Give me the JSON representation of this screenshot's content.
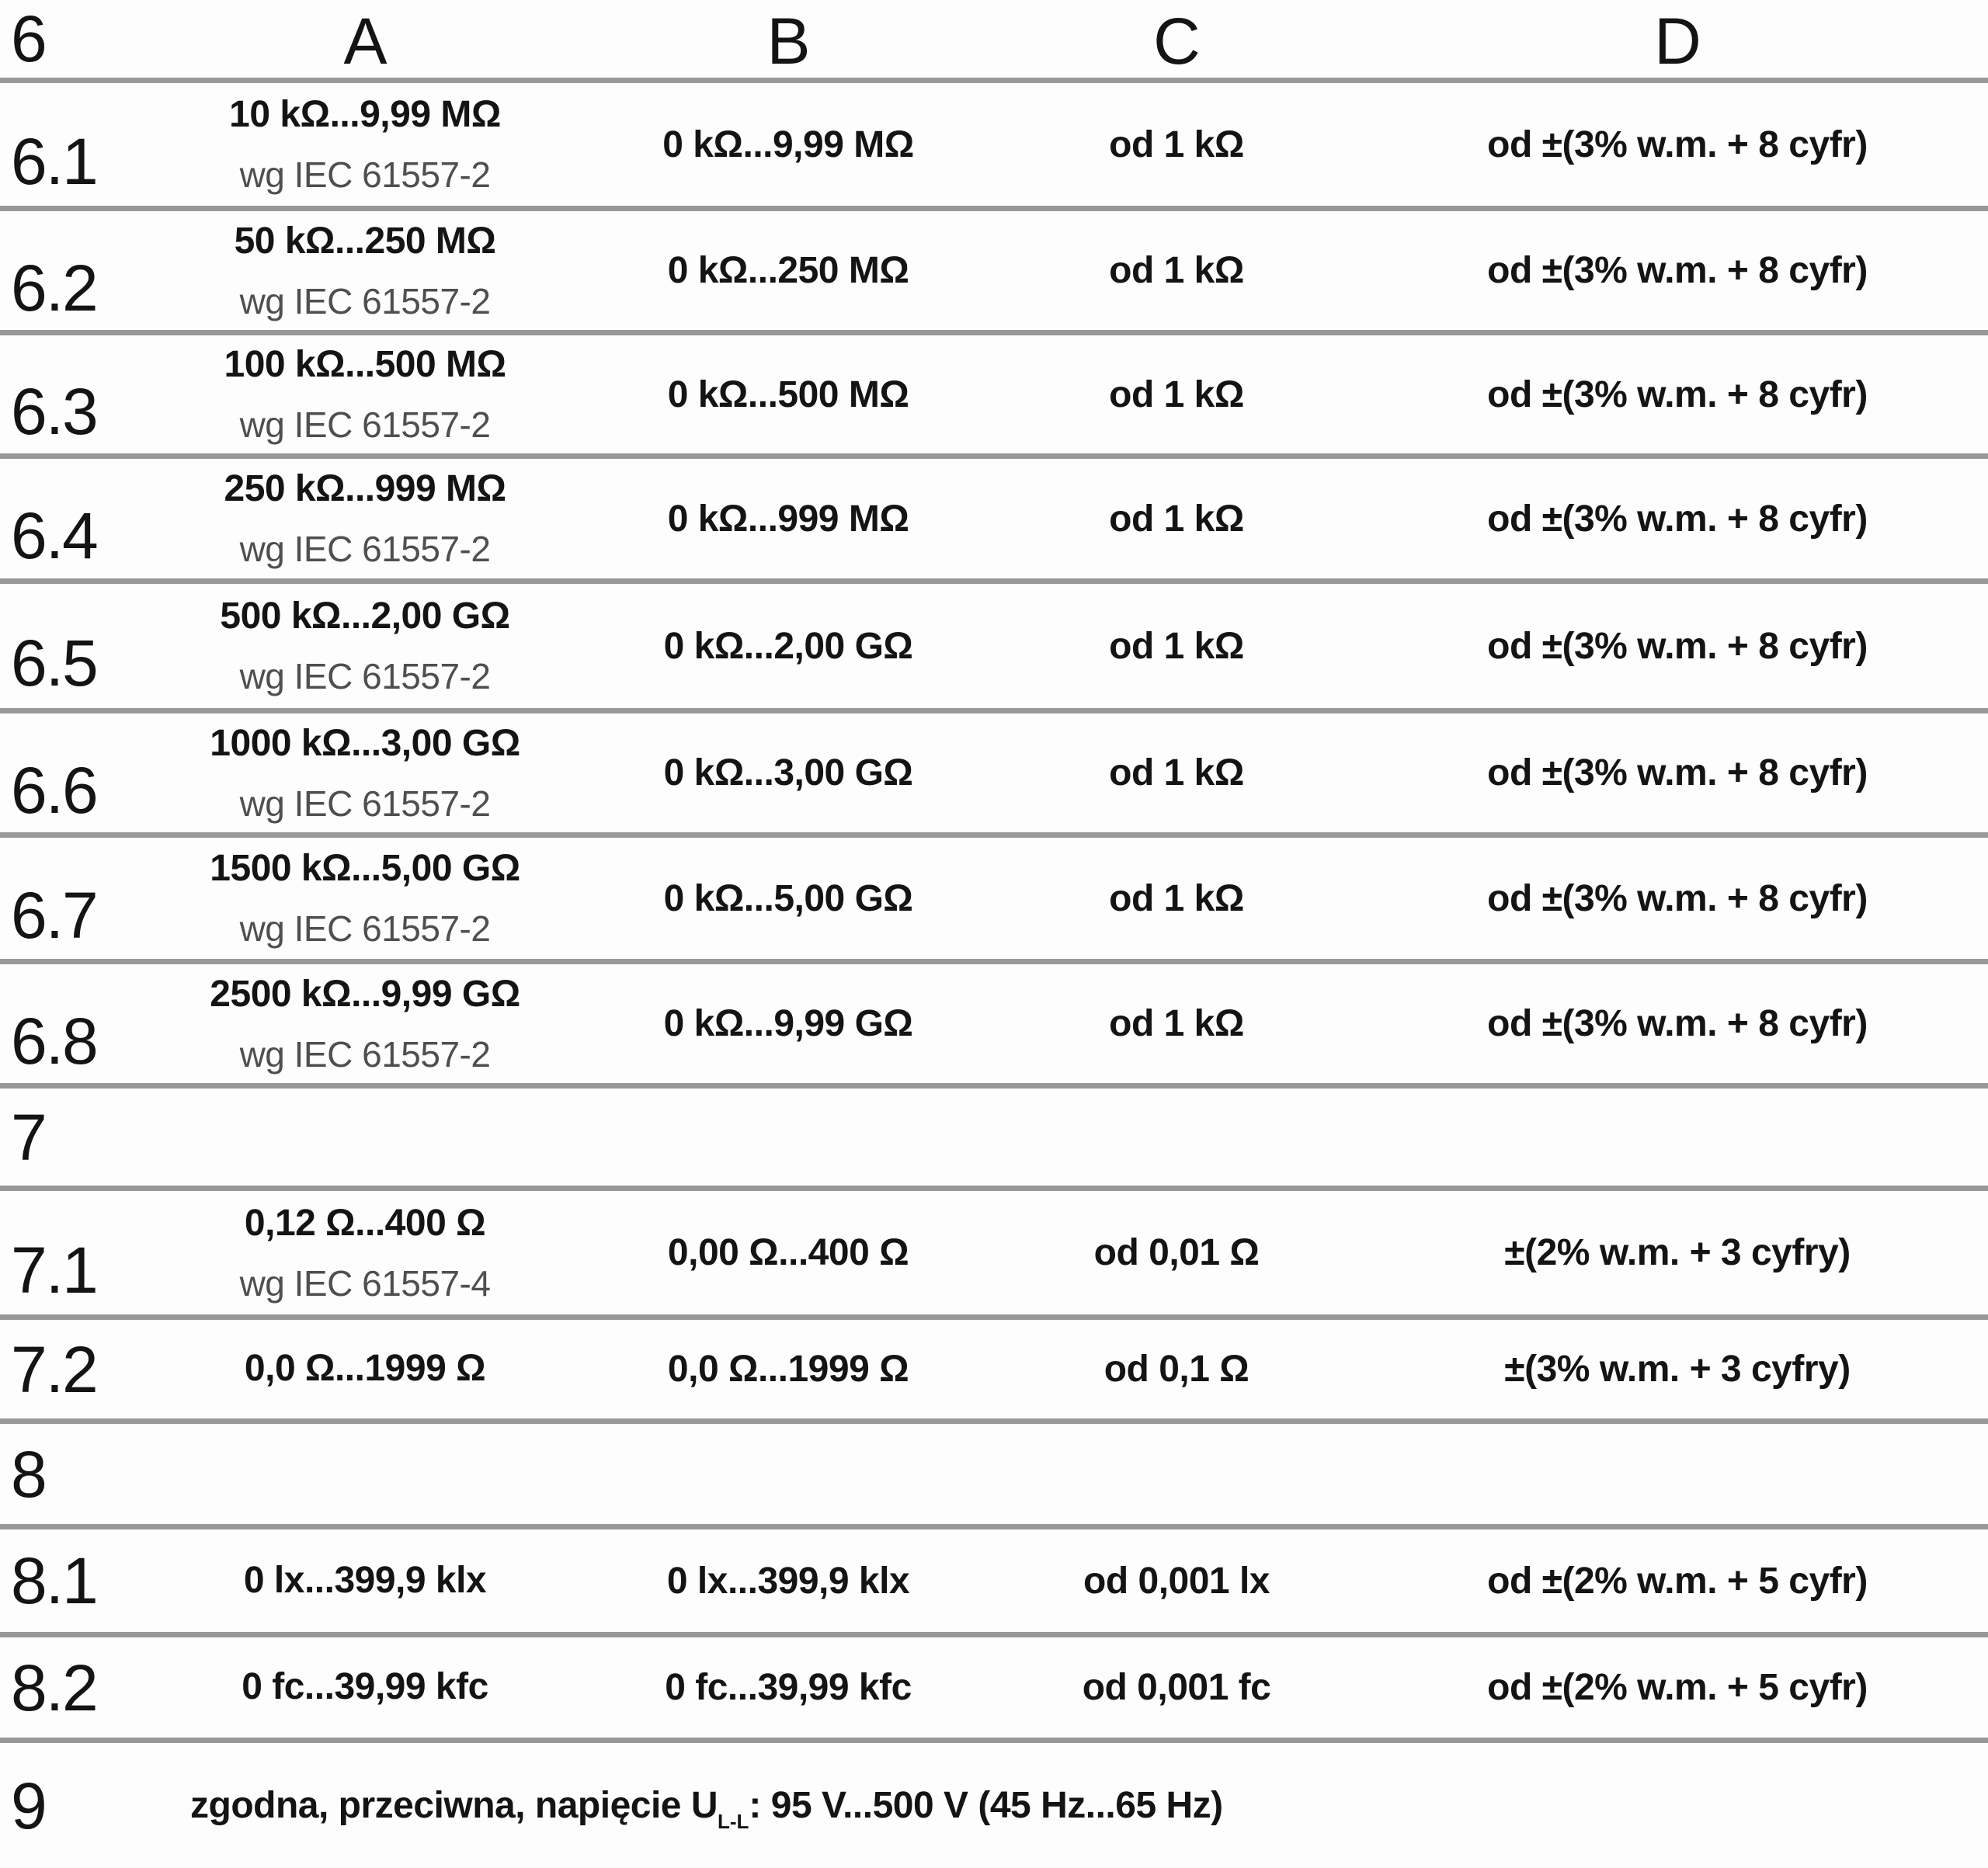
{
  "table": {
    "header": {
      "id": "6",
      "cols": [
        "A",
        "B",
        "C",
        "D"
      ]
    },
    "rows": [
      {
        "id": "6.1",
        "a": "10 kΩ...9,99 MΩ",
        "a_sub": "wg IEC 61557-2",
        "b": "0 kΩ...9,99 MΩ",
        "c": "od 1 kΩ",
        "d": "od ±(3% w.m. + 8 cyfr)"
      },
      {
        "id": "6.2",
        "a": "50 kΩ...250 MΩ",
        "a_sub": "wg IEC 61557-2",
        "b": "0 kΩ...250 MΩ",
        "c": "od 1 kΩ",
        "d": "od ±(3% w.m. + 8 cyfr)"
      },
      {
        "id": "6.3",
        "a": "100 kΩ...500 MΩ",
        "a_sub": "wg IEC 61557-2",
        "b": "0 kΩ...500 MΩ",
        "c": "od 1 kΩ",
        "d": "od ±(3% w.m. + 8 cyfr)"
      },
      {
        "id": "6.4",
        "a": "250 kΩ...999 MΩ",
        "a_sub": "wg IEC 61557-2",
        "b": "0 kΩ...999 MΩ",
        "c": "od 1 kΩ",
        "d": "od ±(3% w.m. + 8 cyfr)"
      },
      {
        "id": "6.5",
        "a": "500 kΩ...2,00 GΩ",
        "a_sub": "wg IEC 61557-2",
        "b": "0 kΩ...2,00 GΩ",
        "c": "od 1 kΩ",
        "d": "od ±(3% w.m. + 8 cyfr)"
      },
      {
        "id": "6.6",
        "a": "1000 kΩ...3,00 GΩ",
        "a_sub": "wg IEC 61557-2",
        "b": "0 kΩ...3,00 GΩ",
        "c": "od 1 kΩ",
        "d": "od ±(3% w.m. + 8 cyfr)"
      },
      {
        "id": "6.7",
        "a": "1500 kΩ...5,00 GΩ",
        "a_sub": "wg IEC 61557-2",
        "b": "0 kΩ...5,00 GΩ",
        "c": "od 1 kΩ",
        "d": "od ±(3% w.m. + 8 cyfr)"
      },
      {
        "id": "6.8",
        "a": "2500 kΩ...9,99 GΩ",
        "a_sub": "wg IEC 61557-2",
        "b": "0 kΩ...9,99 GΩ",
        "c": "od 1 kΩ",
        "d": "od ±(3% w.m. + 8 cyfr)"
      },
      {
        "id": "7"
      },
      {
        "id": "7.1",
        "a": "0,12 Ω...400 Ω",
        "a_sub": "wg IEC 61557-4",
        "b": "0,00 Ω...400 Ω",
        "c": "od 0,01 Ω",
        "d": "±(2% w.m. + 3 cyfry)"
      },
      {
        "id": "7.2",
        "a": "0,0 Ω...1999 Ω",
        "b": "0,0 Ω...1999 Ω",
        "c": "od 0,1 Ω",
        "d": "±(3% w.m. + 3 cyfry)"
      },
      {
        "id": "8"
      },
      {
        "id": "8.1",
        "a": "0 lx...399,9 klx",
        "b": "0 lx...399,9 klx",
        "c": "od 0,001 lx",
        "d": "od ±(2% w.m. + 5 cyfr)"
      },
      {
        "id": "8.2",
        "a": "0 fc...39,99 kfc",
        "b": "0 fc...39,99 kfc",
        "c": "od 0,001 fc",
        "d": "od ±(2% w.m. + 5 cyfr)"
      },
      {
        "id": "9",
        "note_prefix": "zgodna, przeciwna, napięcie U",
        "note_sub": "L-L",
        "note_suffix": ": 95 V...500 V (45 Hz...65 Hz)"
      }
    ]
  },
  "colors": {
    "line": "#989898",
    "text": "#141414",
    "secondary_text": "#4f4f4f",
    "background": "#fdfdfd"
  }
}
